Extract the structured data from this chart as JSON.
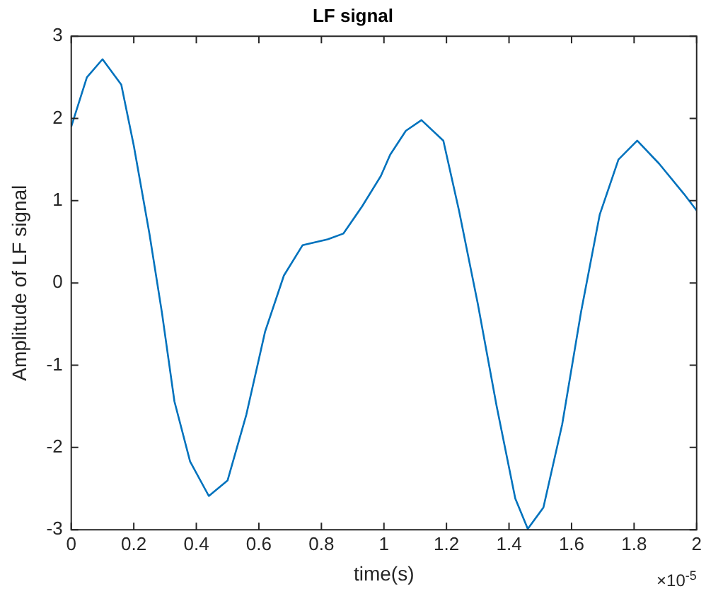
{
  "chart_data": {
    "type": "line",
    "title": "LF signal",
    "xlabel": "time(s)",
    "ylabel": "Amplitude of LF signal",
    "annotations": [
      "×10$^{-5}$"
    ],
    "xlim": [
      0,
      2
    ],
    "xticks": [
      0,
      0.2,
      0.4,
      0.6,
      0.8,
      1,
      1.2,
      1.4,
      1.6,
      1.8,
      2
    ],
    "ylim": [
      -3,
      3
    ],
    "yticks": [
      -3,
      -2,
      -1,
      0,
      1,
      2,
      3
    ],
    "grid": false,
    "legend": false,
    "marker": "none",
    "line_style": "solid",
    "series": [
      {
        "color": "#0072bd",
        "x": [
          0,
          0.05,
          0.1,
          0.16,
          0.2,
          0.25,
          0.29,
          0.33,
          0.38,
          0.44,
          0.5,
          0.56,
          0.62,
          0.68,
          0.74,
          0.82,
          0.87,
          0.93,
          0.99,
          1.02,
          1.07,
          1.12,
          1.19,
          1.24,
          1.3,
          1.36,
          1.42,
          1.46,
          1.51,
          1.57,
          1.63,
          1.69,
          1.75,
          1.81,
          1.88,
          1.96,
          2
        ],
        "values": [
          1.9,
          2.5,
          2.72,
          2.41,
          1.67,
          0.6,
          -0.36,
          -1.44,
          -2.17,
          -2.59,
          -2.4,
          -1.6,
          -0.59,
          0.09,
          0.46,
          0.53,
          0.6,
          0.93,
          1.3,
          1.56,
          1.85,
          1.98,
          1.73,
          0.88,
          -0.25,
          -1.49,
          -2.62,
          -2.99,
          -2.73,
          -1.72,
          -0.36,
          0.83,
          1.5,
          1.73,
          1.45,
          1.08,
          0.88
        ]
      }
    ]
  }
}
